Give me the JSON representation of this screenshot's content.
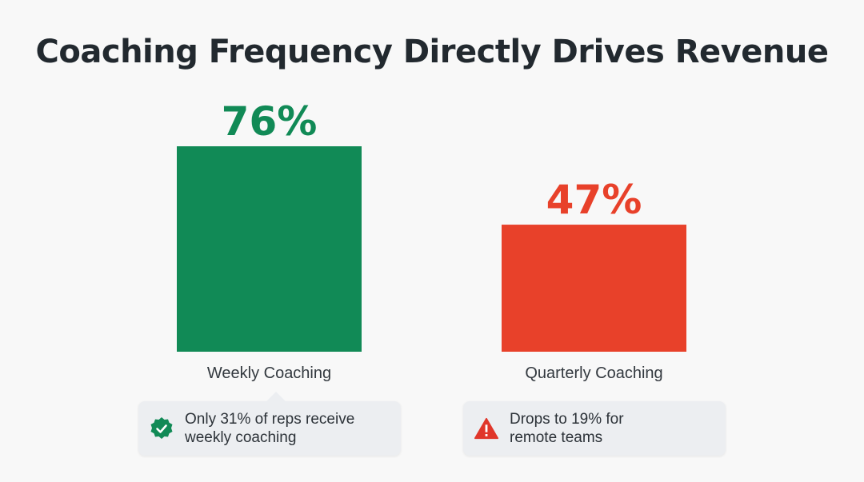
{
  "chart_data": {
    "type": "bar",
    "title": "Coaching Frequency Directly Drives Revenue",
    "categories": [
      "Weekly Coaching",
      "Quarterly Coaching"
    ],
    "values": [
      76,
      47
    ],
    "data_labels": [
      "76%",
      "47%"
    ],
    "colors": [
      "#118a56",
      "#e8412a"
    ],
    "ylim": [
      0,
      100
    ],
    "grid": false
  },
  "callouts": [
    {
      "icon": "check-badge-icon",
      "color": "#118a56",
      "line1": "Only 31% of reps receive",
      "line2": "weekly coaching"
    },
    {
      "icon": "warning-triangle-icon",
      "color": "#e0362a",
      "line1": "Drops to 19% for",
      "line2": "remote teams"
    }
  ]
}
